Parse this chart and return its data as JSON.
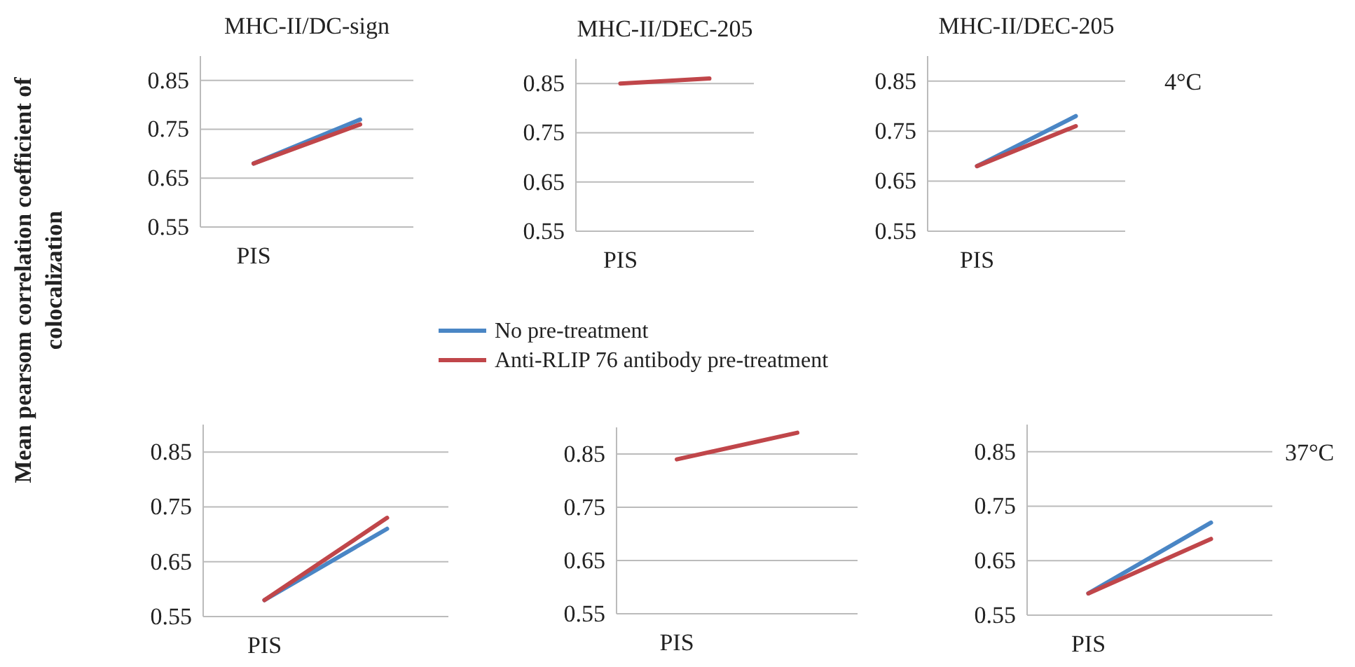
{
  "chart_data": [
    {
      "type": "line",
      "title": "MHC-II/DC-sign",
      "ylabel": "Mean pearsom correlation coefficient of colocalization",
      "categories": [
        "PIS",
        null
      ],
      "ylim": [
        0.55,
        0.9
      ],
      "yticks": [
        0.55,
        0.65,
        0.75,
        0.85
      ],
      "grid": "y",
      "legend": "bottom",
      "series": [
        {
          "name": "No pre-treatment",
          "color": "#4a86c5",
          "values": [
            0.68,
            0.77
          ]
        },
        {
          "name": "Anti-RLIP 76 antibody pre-treatment",
          "color": "#c0464a",
          "values": [
            0.68,
            0.76
          ]
        }
      ]
    },
    {
      "type": "line",
      "title": "MHC-II/DEC-205",
      "categories": [
        "PIS",
        null
      ],
      "ylim": [
        0.55,
        0.9
      ],
      "yticks": [
        0.55,
        0.65,
        0.75,
        0.85
      ],
      "grid": "y",
      "series": [
        {
          "color": "#c0464a",
          "values": [
            0.85,
            0.86
          ]
        }
      ]
    },
    {
      "type": "line",
      "title": "MHC-II/DEC-205",
      "annotations": [
        "4°C"
      ],
      "categories": [
        "PIS",
        null
      ],
      "ylim": [
        0.55,
        0.9
      ],
      "yticks": [
        0.55,
        0.65,
        0.75,
        0.85
      ],
      "grid": "y",
      "series": [
        {
          "color": "#4a86c5",
          "values": [
            0.68,
            0.78
          ]
        },
        {
          "color": "#c0464a",
          "values": [
            0.68,
            0.76
          ]
        }
      ]
    },
    {
      "type": "line",
      "categories": [
        "PIS",
        null
      ],
      "ylim": [
        0.55,
        0.9
      ],
      "yticks": [
        0.55,
        0.65,
        0.75,
        0.85
      ],
      "grid": "y",
      "series": [
        {
          "color": "#4a86c5",
          "values": [
            0.58,
            0.71
          ]
        },
        {
          "color": "#c0464a",
          "values": [
            0.58,
            0.73
          ]
        }
      ]
    },
    {
      "type": "line",
      "categories": [
        "PIS",
        null
      ],
      "ylim": [
        0.55,
        0.9
      ],
      "yticks": [
        0.55,
        0.65,
        0.75,
        0.85
      ],
      "grid": "y",
      "series": [
        {
          "color": "#c0464a",
          "values": [
            0.84,
            0.89
          ]
        }
      ]
    },
    {
      "type": "line",
      "annotations": [
        "37°C"
      ],
      "categories": [
        "PIS",
        null
      ],
      "ylim": [
        0.55,
        0.9
      ],
      "yticks": [
        0.55,
        0.65,
        0.75,
        0.85
      ],
      "grid": "y",
      "series": [
        {
          "color": "#4a86c5",
          "values": [
            0.59,
            0.72
          ]
        },
        {
          "color": "#c0464a",
          "values": [
            0.59,
            0.69
          ]
        }
      ]
    }
  ]
}
